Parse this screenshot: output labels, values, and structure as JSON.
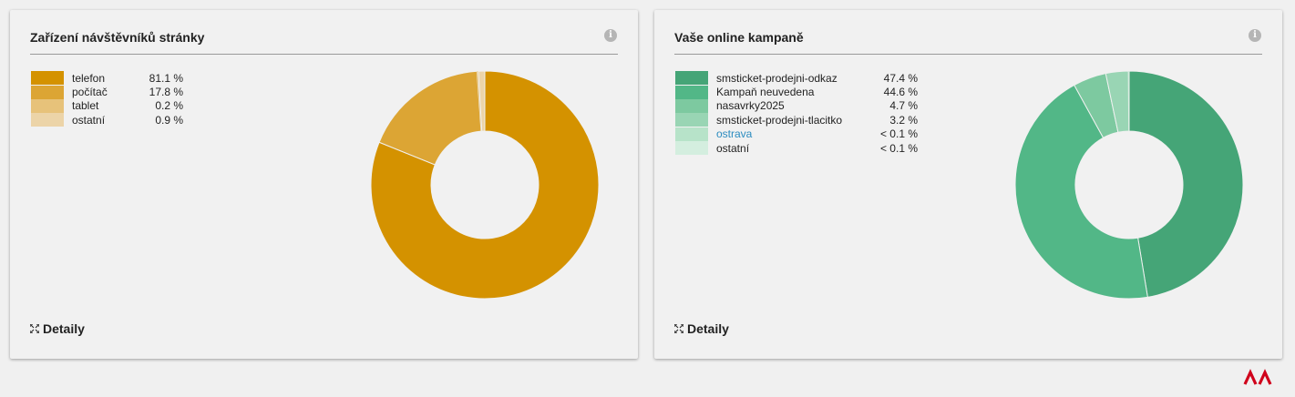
{
  "cards": [
    {
      "title": "Zařízení návštěvníků stránky",
      "details_label": "Detaily",
      "legend": [
        {
          "label": "telefon",
          "value_text": "81.1 %",
          "value": 81.1,
          "color": "#d49200"
        },
        {
          "label": "počítač",
          "value_text": "17.8 %",
          "value": 17.8,
          "color": "#dca534"
        },
        {
          "label": "tablet",
          "value_text": "0.2 %",
          "value": 0.2,
          "color": "#e7c27a"
        },
        {
          "label": "ostatní",
          "value_text": "0.9 %",
          "value": 0.9,
          "color": "#ecd4a8"
        }
      ]
    },
    {
      "title": "Vaše online kampaně",
      "details_label": "Detaily",
      "legend": [
        {
          "label": "smsticket-prodejni-odkaz",
          "value_text": "47.4 %",
          "value": 47.4,
          "color": "#45a577"
        },
        {
          "label": "Kampaň neuvedena",
          "value_text": "44.6 %",
          "value": 44.6,
          "color": "#52b787"
        },
        {
          "label": "nasavrky2025",
          "value_text": "4.7 %",
          "value": 4.7,
          "color": "#7dc9a0"
        },
        {
          "label": "smsticket-prodejni-tlacitko",
          "value_text": "3.2 %",
          "value": 3.2,
          "color": "#99d5b4"
        },
        {
          "label": "ostrava",
          "value_text": "< 0.1 %",
          "value": 0.05,
          "color": "#b7e3c9",
          "link": true
        },
        {
          "label": "ostatní",
          "value_text": "< 0.1 %",
          "value": 0.05,
          "color": "#d4eedf"
        }
      ]
    }
  ],
  "chart_data": [
    {
      "type": "pie",
      "donut": true,
      "categories": [
        "telefon",
        "počítač",
        "tablet",
        "ostatní"
      ],
      "values": [
        81.1,
        17.8,
        0.2,
        0.9
      ]
    },
    {
      "type": "pie",
      "donut": true,
      "categories": [
        "smsticket-prodejni-odkaz",
        "Kampaň neuvedena",
        "nasavrky2025",
        "smsticket-prodejni-tlacitko",
        "ostrava",
        "ostatní"
      ],
      "values": [
        47.4,
        44.6,
        4.7,
        3.2,
        0.05,
        0.05
      ]
    }
  ],
  "icons": {
    "info": "info-icon",
    "expand": "expand-icon",
    "brand": "brand-logo"
  },
  "brand_color": "#d0021b"
}
